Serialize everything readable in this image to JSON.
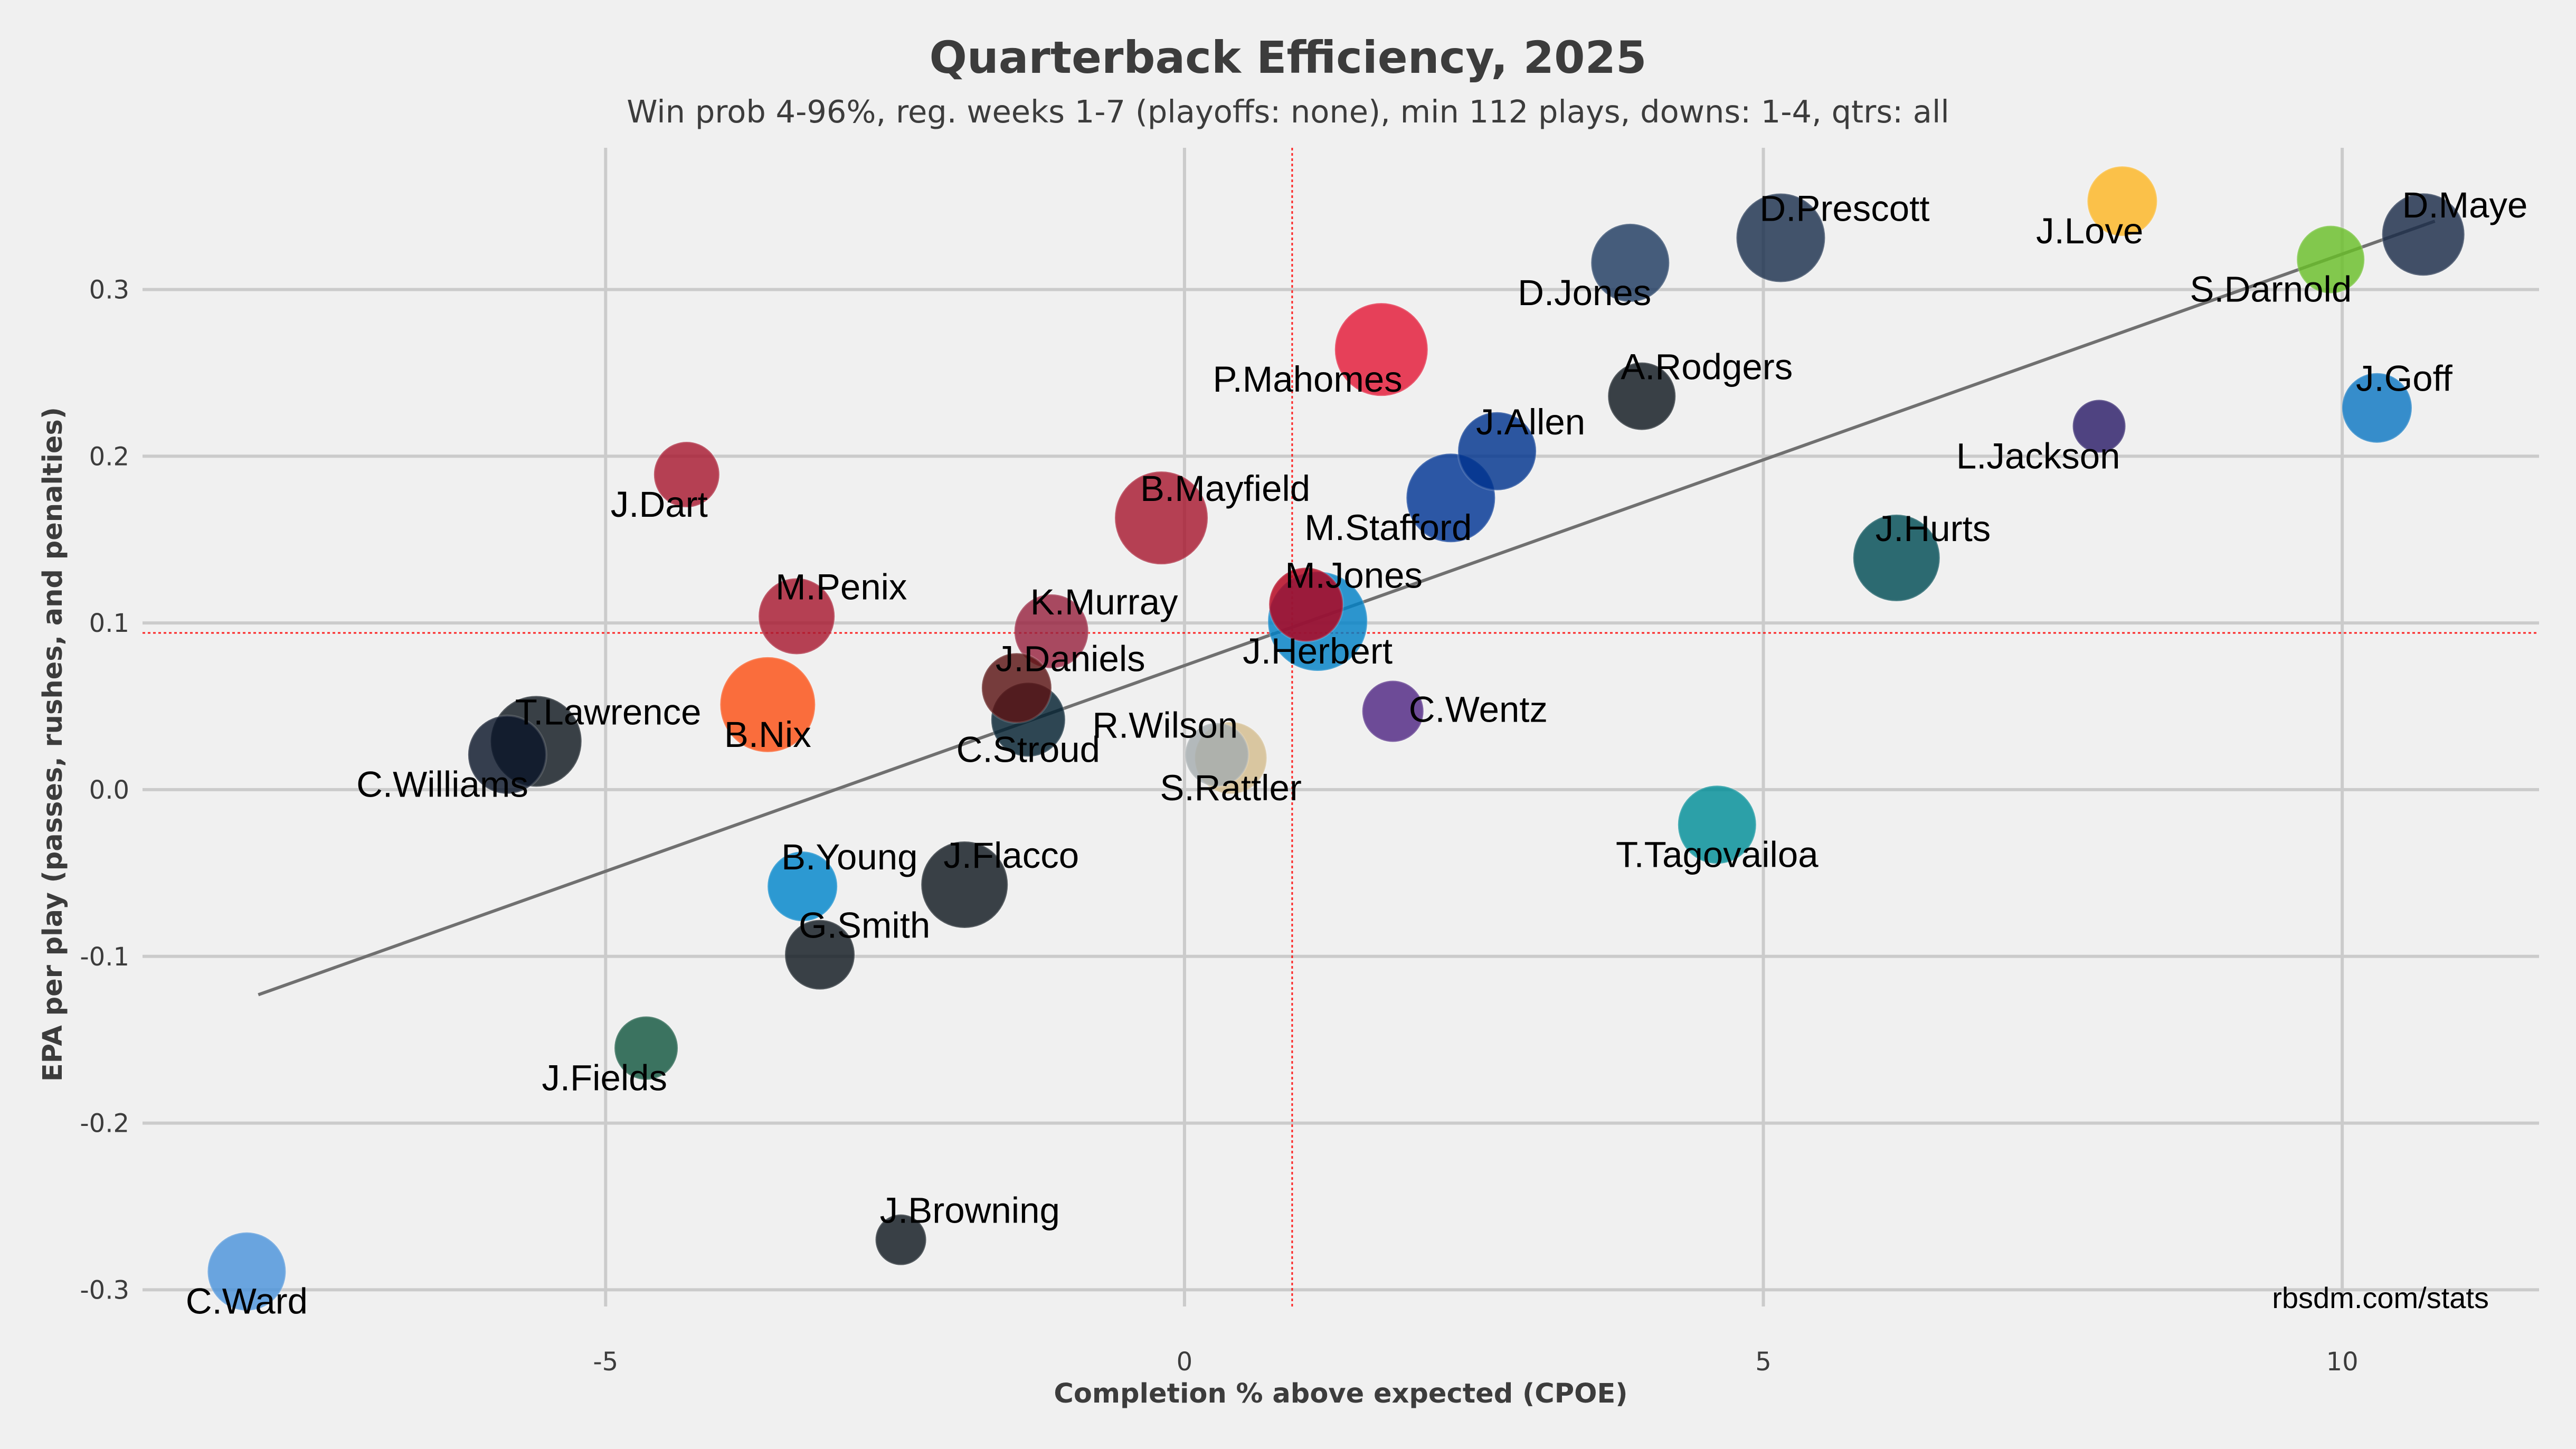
{
  "chart_data": {
    "type": "scatter",
    "title": "Quarterback Efficiency, 2025",
    "subtitle": "Win prob 4-96%, reg. weeks 1-7 (playoffs: none), min 112 plays, downs: 1-4, qtrs: all",
    "xlabel": "Completion % above expected (CPOE)",
    "ylabel": "EPA per play (passes, rushes, and penalties)",
    "xlim": [
      -9,
      11.7
    ],
    "ylim": [
      -0.31,
      0.385
    ],
    "x_ticks": [
      {
        "value": -5,
        "label": "-5"
      },
      {
        "value": 0,
        "label": "0"
      },
      {
        "value": 5,
        "label": "5"
      },
      {
        "value": 10,
        "label": "10"
      }
    ],
    "y_ticks": [
      {
        "value": -0.3,
        "label": "-0.3"
      },
      {
        "value": -0.2,
        "label": "-0.2"
      },
      {
        "value": -0.1,
        "label": "-0.1"
      },
      {
        "value": 0.0,
        "label": "0.0"
      },
      {
        "value": 0.1,
        "label": "0.1"
      },
      {
        "value": 0.2,
        "label": "0.2"
      },
      {
        "value": 0.3,
        "label": "0.3"
      }
    ],
    "grid": true,
    "reference_lines": {
      "x_mean": 0.93,
      "y_mean": 0.094
    },
    "trend_line": {
      "x1": -8.0,
      "y1": -0.123,
      "x2": 10.8,
      "y2": 0.341
    },
    "source_label": "rbsdm.com/stats",
    "points": [
      {
        "name": "D.Maye",
        "x": 10.7,
        "y": 0.333,
        "size": 1.3,
        "color": "#1a2b48",
        "label_pos": "above"
      },
      {
        "name": "J.Love",
        "x": 8.1,
        "y": 0.353,
        "size": 1.0,
        "color": "#fdb623",
        "label_pos": "below-left"
      },
      {
        "name": "S.Darnold",
        "x": 9.9,
        "y": 0.318,
        "size": 0.95,
        "color": "#69be28",
        "label_pos": "below-left"
      },
      {
        "name": "D.Prescott",
        "x": 5.15,
        "y": 0.331,
        "size": 1.45,
        "color": "#1b2f4d",
        "label_pos": "above"
      },
      {
        "name": "D.Jones",
        "x": 3.85,
        "y": 0.316,
        "size": 1.2,
        "color": "#1e3a60",
        "label_pos": "below-left"
      },
      {
        "name": "J.Goff",
        "x": 10.3,
        "y": 0.229,
        "size": 1.0,
        "color": "#0c76c2",
        "label_pos": "above"
      },
      {
        "name": "L.Jackson",
        "x": 7.9,
        "y": 0.218,
        "size": 0.6,
        "color": "#2b1c68",
        "label_pos": "below-left"
      },
      {
        "name": "P.Mahomes",
        "x": 1.7,
        "y": 0.264,
        "size": 1.55,
        "color": "#e31837",
        "label_pos": "below-left"
      },
      {
        "name": "A.Rodgers",
        "x": 3.95,
        "y": 0.236,
        "size": 0.95,
        "color": "#101820",
        "label_pos": "above"
      },
      {
        "name": "J.Allen",
        "x": 2.7,
        "y": 0.203,
        "size": 1.2,
        "color": "#00338d",
        "label_pos": "above"
      },
      {
        "name": "M.Stafford",
        "x": 2.3,
        "y": 0.175,
        "size": 1.45,
        "color": "#003594",
        "label_pos": "below-left"
      },
      {
        "name": "J.Dart",
        "x": -4.3,
        "y": 0.189,
        "size": 0.9,
        "color": "#a71930",
        "label_pos": "below-left"
      },
      {
        "name": "B.Mayfield",
        "x": -0.2,
        "y": 0.163,
        "size": 1.55,
        "color": "#a71930",
        "label_pos": "above"
      },
      {
        "name": "J.Hurts",
        "x": 6.15,
        "y": 0.139,
        "size": 1.4,
        "color": "#004c54",
        "label_pos": "above"
      },
      {
        "name": "M.Jones",
        "x": 1.05,
        "y": 0.111,
        "size": 1.1,
        "color": "#b3001b",
        "label_pos": "above"
      },
      {
        "name": "J.Herbert",
        "x": 1.15,
        "y": 0.101,
        "size": 1.7,
        "color": "#0080c6",
        "label_pos": "below"
      },
      {
        "name": "M.Penix",
        "x": -3.35,
        "y": 0.104,
        "size": 1.15,
        "color": "#a71930",
        "label_pos": "above"
      },
      {
        "name": "K.Murray",
        "x": -1.15,
        "y": 0.095,
        "size": 1.1,
        "color": "#97233f",
        "label_pos": "above"
      },
      {
        "name": "J.Daniels",
        "x": -1.45,
        "y": 0.061,
        "size": 1.0,
        "color": "#5a1414",
        "label_pos": "above"
      },
      {
        "name": "C.Stroud",
        "x": -1.35,
        "y": 0.042,
        "size": 1.1,
        "color": "#03202f",
        "label_pos": "below"
      },
      {
        "name": "B.Nix",
        "x": -3.6,
        "y": 0.051,
        "size": 1.6,
        "color": "#fb4f14",
        "label_pos": "below"
      },
      {
        "name": "T.Lawrence",
        "x": -5.6,
        "y": 0.029,
        "size": 1.5,
        "color": "#101820",
        "label_pos": "above"
      },
      {
        "name": "C.Williams",
        "x": -5.85,
        "y": 0.021,
        "size": 1.2,
        "color": "#0b162a",
        "label_pos": "below-left"
      },
      {
        "name": "C.Wentz",
        "x": 1.8,
        "y": 0.047,
        "size": 0.8,
        "color": "#4f2683",
        "label_pos": "right"
      },
      {
        "name": "R.Wilson",
        "x": 0.28,
        "y": 0.021,
        "size": 0.85,
        "color": "#a5acaf",
        "label_pos": "above-left"
      },
      {
        "name": "S.Rattler",
        "x": 0.4,
        "y": 0.019,
        "size": 1.05,
        "color": "#d3bc8d",
        "label_pos": "below"
      },
      {
        "name": "T.Tagovailoa",
        "x": 4.6,
        "y": -0.021,
        "size": 1.2,
        "color": "#008e97",
        "label_pos": "below"
      },
      {
        "name": "B.Young",
        "x": -3.3,
        "y": -0.058,
        "size": 1.0,
        "color": "#0085ca",
        "label_pos": "above"
      },
      {
        "name": "J.Flacco",
        "x": -1.9,
        "y": -0.057,
        "size": 1.4,
        "color": "#101820",
        "label_pos": "above"
      },
      {
        "name": "G.Smith",
        "x": -3.15,
        "y": -0.099,
        "size": 1.0,
        "color": "#101820",
        "label_pos": "above"
      },
      {
        "name": "J.Fields",
        "x": -4.65,
        "y": -0.155,
        "size": 0.85,
        "color": "#125740",
        "label_pos": "below-left"
      },
      {
        "name": "J.Browning",
        "x": -2.45,
        "y": -0.27,
        "size": 0.55,
        "color": "#101820",
        "label_pos": "above"
      },
      {
        "name": "C.Ward",
        "x": -8.1,
        "y": -0.289,
        "size": 1.2,
        "color": "#4b92db",
        "label_pos": "below"
      }
    ]
  }
}
